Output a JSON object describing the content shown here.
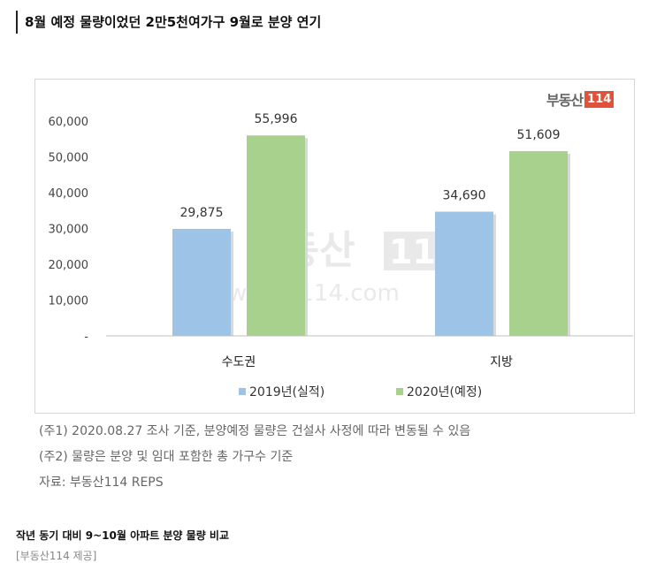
{
  "headline": "8월 예정 물량이었던 2만5천여가구 9월로 분양 연기",
  "logo": {
    "text": "부동산",
    "box": "114"
  },
  "watermark": {
    "brand": "부동산",
    "num": "114",
    "url": "www.r114.com"
  },
  "chart_data": {
    "type": "bar",
    "categories": [
      "수도권",
      "지방"
    ],
    "series": [
      {
        "name": "2019년(실적)",
        "values": [
          29875,
          34690
        ],
        "labels": [
          "29,875",
          "34,690"
        ],
        "color": "#9dc3e6"
      },
      {
        "name": "2020년(예정)",
        "values": [
          55996,
          51609
        ],
        "labels": [
          "55,996",
          "51,609"
        ],
        "color": "#a9d18e"
      }
    ],
    "yticks": [
      "-",
      "10,000",
      "20,000",
      "30,000",
      "40,000",
      "50,000",
      "60,000"
    ],
    "ylim": [
      0,
      60000
    ],
    "legend_position": "bottom",
    "grid": false
  },
  "notes": [
    "(주1) 2020.08.27 조사 기준, 분양예정 물량은 건설사 사정에 따라 변동될 수 있음",
    "(주2) 물량은 분양 및 임대 포함한 총 가구수 기준",
    "자료: 부동산114 REPS"
  ],
  "caption": "작년 동기 대비 9~10월 아파트 분양 물량 비교",
  "credit": "[부동산114 제공]"
}
